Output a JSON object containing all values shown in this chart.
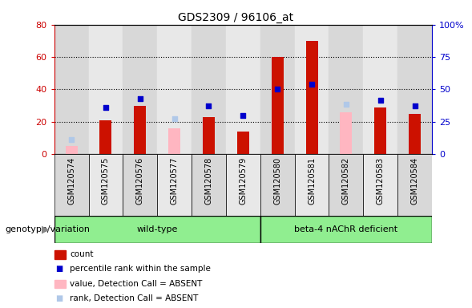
{
  "title": "GDS2309 / 96106_at",
  "samples": [
    "GSM120574",
    "GSM120575",
    "GSM120576",
    "GSM120577",
    "GSM120578",
    "GSM120579",
    "GSM120580",
    "GSM120581",
    "GSM120582",
    "GSM120583",
    "GSM120584"
  ],
  "red_bars": [
    null,
    21,
    30,
    null,
    23,
    14,
    60,
    70,
    null,
    29,
    25
  ],
  "blue_squares": [
    null,
    29,
    34,
    null,
    30,
    24,
    40,
    43,
    null,
    33,
    30
  ],
  "pink_bars": [
    5,
    null,
    null,
    16,
    null,
    null,
    null,
    null,
    26,
    null,
    null
  ],
  "light_blue_squares": [
    9,
    null,
    null,
    22,
    null,
    null,
    null,
    null,
    31,
    null,
    null
  ],
  "ylim_left": [
    0,
    80
  ],
  "ylim_right": [
    0,
    100
  ],
  "yticks_left": [
    0,
    20,
    40,
    60,
    80
  ],
  "ytick_labels_right": [
    "0",
    "25",
    "50",
    "75",
    "100%"
  ],
  "left_axis_color": "#cc0000",
  "right_axis_color": "#0000cc",
  "bar_color": "#cc1100",
  "blue_sq_color": "#0000cc",
  "pink_color": "#ffb6c1",
  "light_blue_color": "#b0c8e8",
  "grid_lines": [
    20,
    40,
    60
  ],
  "bar_width": 0.35,
  "sq_size": 22,
  "col_bg_even": "#d8d8d8",
  "col_bg_odd": "#e8e8e8",
  "legend_items": [
    {
      "label": "count",
      "color": "#cc1100",
      "type": "bar"
    },
    {
      "label": "percentile rank within the sample",
      "color": "#0000cc",
      "type": "square"
    },
    {
      "label": "value, Detection Call = ABSENT",
      "color": "#ffb6c1",
      "type": "bar"
    },
    {
      "label": "rank, Detection Call = ABSENT",
      "color": "#b0c8e8",
      "type": "square"
    }
  ],
  "genotype_label": "genotype/variation",
  "group1_label": "wild-type",
  "group2_label": "beta-4 nAChR deficient",
  "group1_indices": [
    0,
    5
  ],
  "group2_indices": [
    6,
    10
  ],
  "group_bg": "#90ee90",
  "group_border": "#000000"
}
